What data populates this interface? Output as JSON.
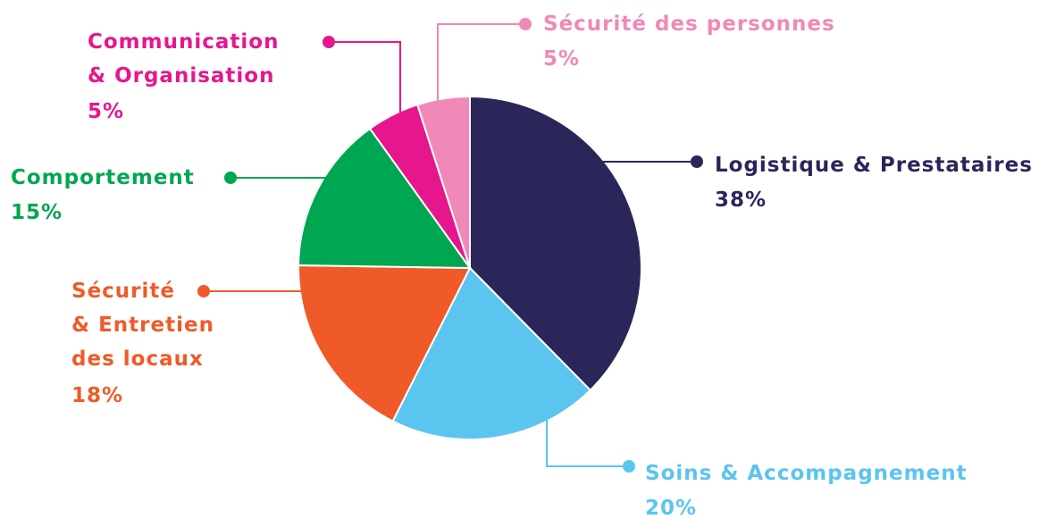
{
  "chart_data": {
    "type": "pie",
    "categories": [
      "Logistique & Prestataires",
      "Soins & Accompagnement",
      "Sécurité\n& Entretien\ndes locaux",
      "Comportement",
      "Communication\n& Organisation",
      "Sécurité des personnes"
    ],
    "values": [
      38,
      20,
      18,
      15,
      5,
      5
    ],
    "value_labels": [
      "38%",
      "20%",
      "18%",
      "15%",
      "5%",
      "5%"
    ],
    "colors": [
      "#2b2659",
      "#5bc4ef",
      "#f05a28",
      "#00a651",
      "#e6178c",
      "#f088b8"
    ]
  }
}
